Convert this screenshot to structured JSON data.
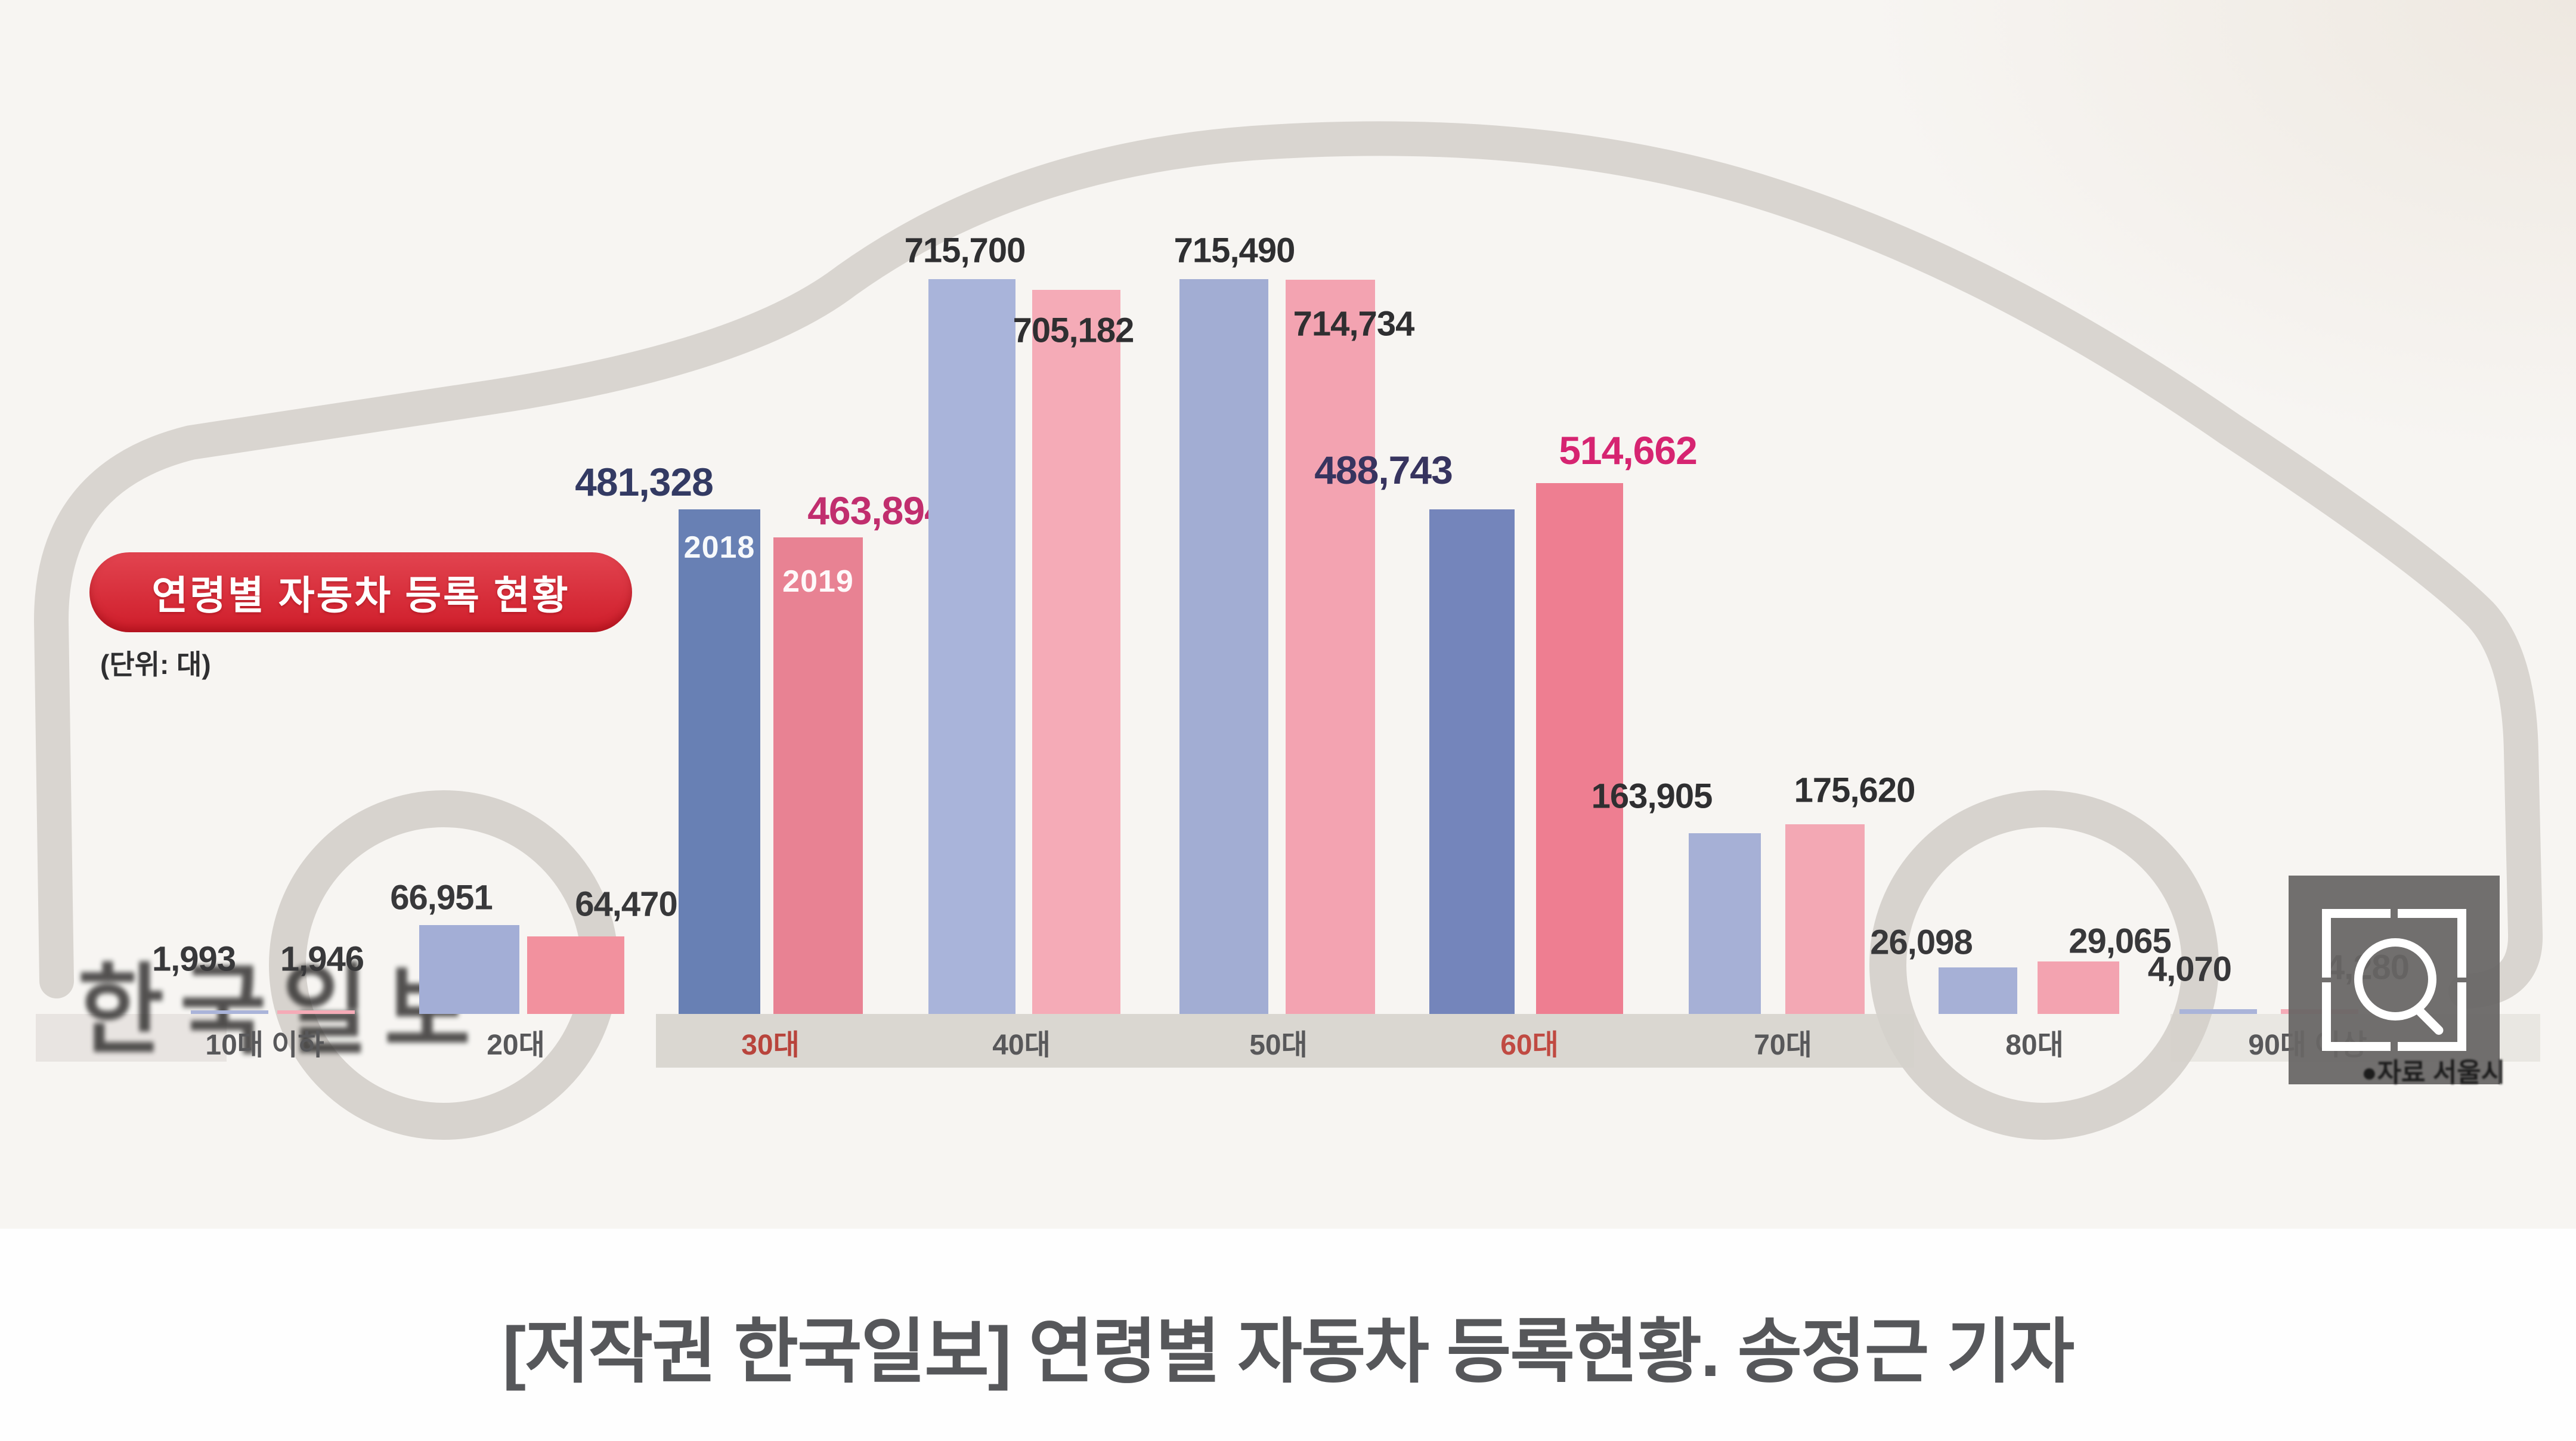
{
  "title": {
    "text": "연령별 자동차 등록 현황",
    "unit": "(단위: 대)"
  },
  "legend": {
    "year_2018": "2018",
    "year_2019": "2019"
  },
  "watermark": "한국일보",
  "source": "●자료 서울시",
  "caption": "[저작권 한국일보] 연령별 자동차 등록현황. 송정근 기자",
  "colors": {
    "accent_red": "#d6252f",
    "car_outline": "#d9d5d0",
    "band_gray": "#d5d1cb",
    "caption_color": "#56575a",
    "bar_blue": [
      "#aab4d9",
      "#a3aed6",
      "#6880b4",
      "#a9b4da",
      "#a2add3",
      "#7485bb",
      "#a6b0d6",
      "#a6b0d6",
      "#aab4d9"
    ],
    "bar_pink": [
      "#f5abb7",
      "#f2919e",
      "#e88293",
      "#f5abb7",
      "#f3a3b1",
      "#ee7e91",
      "#f3a8b4",
      "#f3a3b0",
      "#f5abb7"
    ],
    "label_2018": [
      "#38383a",
      "#38383a",
      "#333a63",
      "#2f2f31",
      "#2f2f31",
      "#37345f",
      "#2f2f31",
      "#38383a",
      "#38383a"
    ],
    "label_2019": [
      "#38383a",
      "#38383a",
      "#c12e6e",
      "#2f2f31",
      "#2f2f31",
      "#d62471",
      "#2f2f31",
      "#38383a",
      "#38383a"
    ],
    "axis_labels": [
      "#58585a",
      "#58585a",
      "#b8443c",
      "#58585a",
      "#58585a",
      "#c04a42",
      "#58585a",
      "#58585a",
      "#58585a"
    ]
  },
  "chart_data": {
    "type": "bar",
    "title": "연령별 자동차 등록 현황",
    "unit_note": "단위: 대",
    "categories": [
      "10대 이하",
      "20대",
      "30대",
      "40대",
      "50대",
      "60대",
      "70대",
      "80대",
      "90대 이상"
    ],
    "series": [
      {
        "name": "2018",
        "values": [
          1993,
          66951,
          481328,
          715700,
          715490,
          488743,
          163905,
          26098,
          4070
        ],
        "labels": [
          "1,993",
          "66,951",
          "481,328",
          "715,700",
          "715,490",
          "488,743",
          "163,905",
          "26,098",
          "4,070"
        ]
      },
      {
        "name": "2019",
        "values": [
          1946,
          64470,
          463894,
          705182,
          714734,
          514662,
          175620,
          29065,
          4280
        ],
        "labels": [
          "1,946",
          "64,470",
          "463,894",
          "705,182",
          "714,734",
          "514,662",
          "175,620",
          "29,065",
          "4,280"
        ]
      }
    ],
    "highlighted_categories": [
      "30대",
      "60대"
    ],
    "legend_position": "on-bars",
    "grid": false,
    "ylim": [
      0,
      760000
    ]
  }
}
